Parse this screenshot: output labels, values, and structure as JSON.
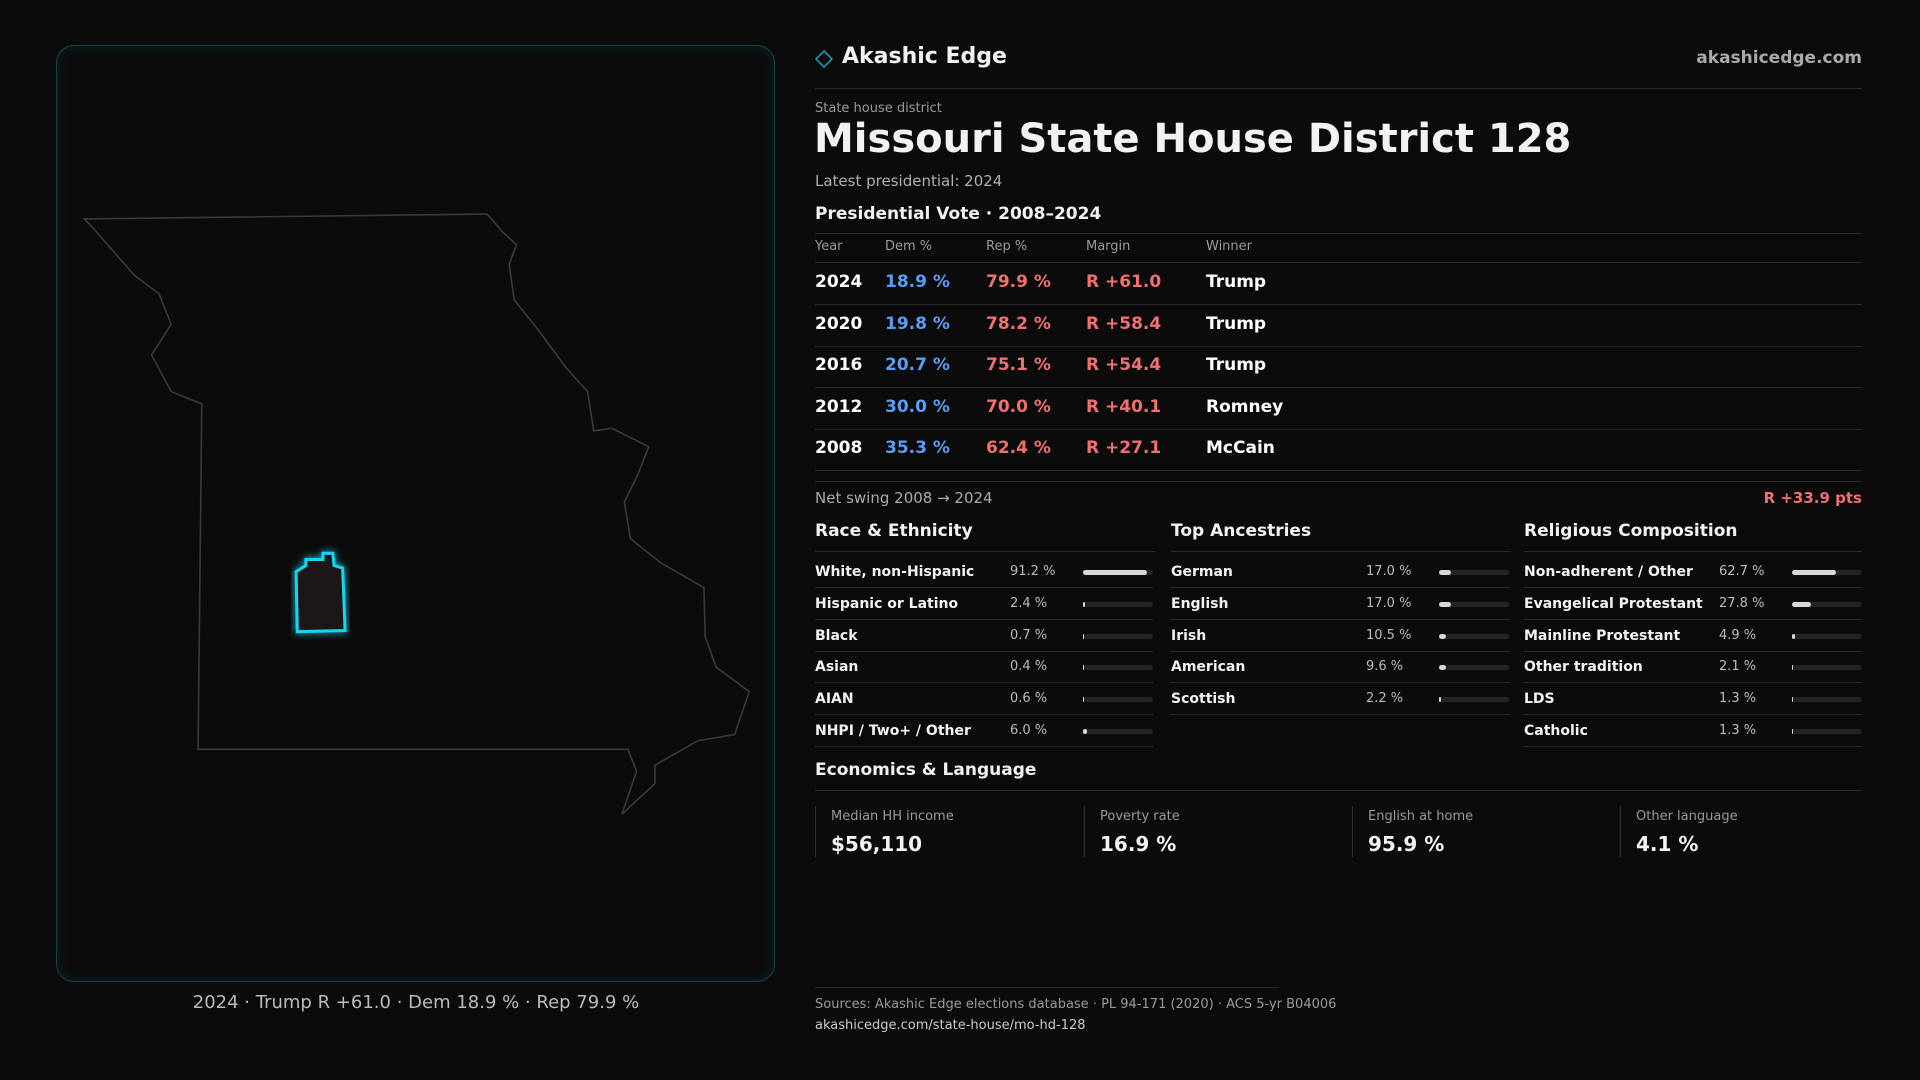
{
  "header": {
    "brand": "Akashic Edge",
    "site": "akashicedge.com"
  },
  "kicker": "State house district",
  "title": "Missouri State House District 128",
  "subtitle": "Latest presidential: 2024",
  "map_caption": "2024 · Trump R +61.0 · Dem 18.9 % · Rep 79.9 %",
  "vote_table": {
    "title": "Presidential Vote · 2008–2024",
    "columns": [
      "Year",
      "Dem %",
      "Rep %",
      "Margin",
      "Winner"
    ],
    "rows": [
      [
        "2024",
        "18.9 %",
        "79.9 %",
        "R +61.0",
        "Trump"
      ],
      [
        "2020",
        "19.8 %",
        "78.2 %",
        "R +58.4",
        "Trump"
      ],
      [
        "2016",
        "20.7 %",
        "75.1 %",
        "R +54.4",
        "Trump"
      ],
      [
        "2012",
        "30.0 %",
        "70.0 %",
        "R +40.1",
        "Romney"
      ],
      [
        "2008",
        "35.3 %",
        "62.4 %",
        "R +27.1",
        "McCain"
      ]
    ]
  },
  "net_swing": {
    "label": "Net swing 2008 → 2024",
    "value": "R +33.9 pts"
  },
  "sections": [
    {
      "title": "Race & Ethnicity",
      "items": [
        {
          "name": "White, non-Hispanic",
          "value": 91.2,
          "label": "91.2 %"
        },
        {
          "name": "Hispanic or Latino",
          "value": 2.4,
          "label": "2.4 %"
        },
        {
          "name": "Black",
          "value": 0.7,
          "label": "0.7 %"
        },
        {
          "name": "Asian",
          "value": 0.4,
          "label": "0.4 %"
        },
        {
          "name": "AIAN",
          "value": 0.6,
          "label": "0.6 %"
        },
        {
          "name": "NHPI / Two+ / Other",
          "value": 6.0,
          "label": "6.0 %"
        }
      ]
    },
    {
      "title": "Top Ancestries",
      "items": [
        {
          "name": "German",
          "value": 17.0,
          "label": "17.0 %"
        },
        {
          "name": "English",
          "value": 17.0,
          "label": "17.0 %"
        },
        {
          "name": "Irish",
          "value": 10.5,
          "label": "10.5 %"
        },
        {
          "name": "American",
          "value": 9.6,
          "label": "9.6 %"
        },
        {
          "name": "Scottish",
          "value": 2.2,
          "label": "2.2 %"
        }
      ]
    },
    {
      "title": "Religious Composition",
      "items": [
        {
          "name": "Non-adherent / Other",
          "value": 62.7,
          "label": "62.7 %"
        },
        {
          "name": "Evangelical Protestant",
          "value": 27.8,
          "label": "27.8 %"
        },
        {
          "name": "Mainline Protestant",
          "value": 4.9,
          "label": "4.9 %"
        },
        {
          "name": "Other tradition",
          "value": 2.1,
          "label": "2.1 %"
        },
        {
          "name": "LDS",
          "value": 1.3,
          "label": "1.3 %"
        },
        {
          "name": "Catholic",
          "value": 1.3,
          "label": "1.3 %"
        }
      ]
    }
  ],
  "economics": {
    "title": "Economics & Language",
    "cards": [
      {
        "label": "Median HH income",
        "value": "$56,110"
      },
      {
        "label": "Poverty rate",
        "value": "16.9 %"
      },
      {
        "label": "English at home",
        "value": "95.9 %"
      },
      {
        "label": "Other language",
        "value": "4.1 %"
      }
    ]
  },
  "footer": {
    "sources": "Sources: Akashic Edge elections database · PL 94-171 (2020) · ACS 5-yr B04006",
    "url": "akashicedge.com/state-house/mo-hd-128"
  }
}
